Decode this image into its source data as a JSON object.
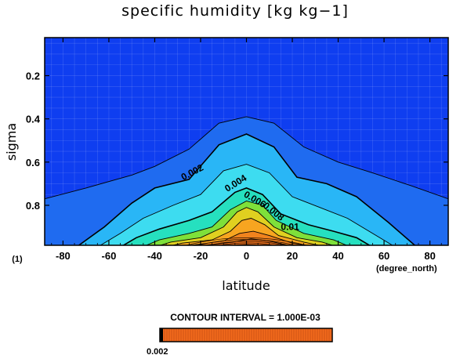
{
  "chart_data": {
    "type": "contour",
    "title": "specific humidity [kg kg−1]",
    "xlabel": "latitude",
    "ylabel": "sigma",
    "x_units": "(degree_north)",
    "y_note": "(1)",
    "xlim": [
      -88,
      88
    ],
    "ylim": [
      1.0,
      0.02
    ],
    "x_ticks": [
      -80,
      -60,
      -40,
      -20,
      0,
      20,
      40,
      60,
      80
    ],
    "y_ticks": [
      0.2,
      0.4,
      0.6,
      0.8
    ],
    "contour_interval_text": "CONTOUR INTERVAL = 1.000E-03",
    "contour_labels": [
      "0.002",
      "0.004",
      "0.006",
      "0.008",
      "0.01"
    ],
    "colorbar_label": "0.002",
    "levels": [
      {
        "value": 0.001,
        "color": "#1f6bf0",
        "profile": [
          [
            -88,
            0.77
          ],
          [
            -70,
            0.72
          ],
          [
            -50,
            0.66
          ],
          [
            -40,
            0.62
          ],
          [
            -25,
            0.54
          ],
          [
            -12,
            0.42
          ],
          [
            0,
            0.39
          ],
          [
            12,
            0.42
          ],
          [
            25,
            0.53
          ],
          [
            40,
            0.6
          ],
          [
            55,
            0.65
          ],
          [
            72,
            0.71
          ],
          [
            88,
            0.77
          ]
        ]
      },
      {
        "value": 0.002,
        "color": "#29b6f6",
        "profile": [
          [
            -75,
            1.0
          ],
          [
            -62,
            0.9
          ],
          [
            -50,
            0.79
          ],
          [
            -40,
            0.72
          ],
          [
            -25,
            0.68
          ],
          [
            -12,
            0.52
          ],
          [
            0,
            0.47
          ],
          [
            12,
            0.53
          ],
          [
            22,
            0.67
          ],
          [
            35,
            0.7
          ],
          [
            48,
            0.76
          ],
          [
            62,
            0.88
          ],
          [
            75,
            1.0
          ]
        ]
      },
      {
        "value": 0.003,
        "color": "#3ddcf0",
        "profile": [
          [
            -66,
            1.0
          ],
          [
            -55,
            0.93
          ],
          [
            -45,
            0.86
          ],
          [
            -32,
            0.8
          ],
          [
            -20,
            0.75
          ],
          [
            -10,
            0.64
          ],
          [
            0,
            0.61
          ],
          [
            10,
            0.65
          ],
          [
            20,
            0.76
          ],
          [
            32,
            0.81
          ],
          [
            44,
            0.86
          ],
          [
            55,
            0.93
          ],
          [
            66,
            1.0
          ]
        ]
      },
      {
        "value": 0.004,
        "color": "#26e0bf",
        "profile": [
          [
            -56,
            1.0
          ],
          [
            -48,
            0.95
          ],
          [
            -38,
            0.91
          ],
          [
            -25,
            0.87
          ],
          [
            -15,
            0.83
          ],
          [
            -5,
            0.74
          ],
          [
            0,
            0.72
          ],
          [
            7,
            0.75
          ],
          [
            15,
            0.84
          ],
          [
            27,
            0.89
          ],
          [
            38,
            0.92
          ],
          [
            48,
            0.95
          ],
          [
            56,
            1.0
          ]
        ]
      },
      {
        "value": 0.005,
        "color": "#7ee03a",
        "profile": [
          [
            -47,
            1.0
          ],
          [
            -38,
            0.96
          ],
          [
            -25,
            0.93
          ],
          [
            -15,
            0.9
          ],
          [
            -7,
            0.82
          ],
          [
            0,
            0.78
          ],
          [
            7,
            0.8
          ],
          [
            13,
            0.87
          ],
          [
            25,
            0.93
          ],
          [
            38,
            0.96
          ],
          [
            47,
            1.0
          ]
        ]
      },
      {
        "value": 0.006,
        "color": "#e0d020",
        "profile": [
          [
            -42,
            1.0
          ],
          [
            -33,
            0.97
          ],
          [
            -20,
            0.95
          ],
          [
            -10,
            0.9
          ],
          [
            -4,
            0.83
          ],
          [
            0,
            0.81
          ],
          [
            5,
            0.83
          ],
          [
            12,
            0.9
          ],
          [
            22,
            0.95
          ],
          [
            33,
            0.97
          ],
          [
            42,
            1.0
          ]
        ]
      },
      {
        "value": 0.007,
        "color": "#f7a520",
        "profile": [
          [
            -38,
            1.0
          ],
          [
            -28,
            0.975
          ],
          [
            -15,
            0.96
          ],
          [
            -7,
            0.92
          ],
          [
            -2,
            0.87
          ],
          [
            2,
            0.86
          ],
          [
            8,
            0.89
          ],
          [
            14,
            0.94
          ],
          [
            25,
            0.97
          ],
          [
            38,
            1.0
          ]
        ]
      },
      {
        "value": 0.008,
        "color": "#f0831e",
        "profile": [
          [
            -34,
            1.0
          ],
          [
            -22,
            0.982
          ],
          [
            -10,
            0.965
          ],
          [
            -3,
            0.93
          ],
          [
            3,
            0.92
          ],
          [
            10,
            0.94
          ],
          [
            20,
            0.975
          ],
          [
            34,
            1.0
          ]
        ]
      },
      {
        "value": 0.009,
        "color": "#e06a1a",
        "profile": [
          [
            -30,
            1.0
          ],
          [
            -18,
            0.985
          ],
          [
            -6,
            0.97
          ],
          [
            2,
            0.955
          ],
          [
            10,
            0.965
          ],
          [
            18,
            0.985
          ],
          [
            30,
            1.0
          ]
        ]
      },
      {
        "value": 0.01,
        "color": "#c2541a",
        "profile": [
          [
            -24,
            1.0
          ],
          [
            -10,
            0.988
          ],
          [
            0,
            0.982
          ],
          [
            10,
            0.988
          ],
          [
            24,
            1.0
          ]
        ]
      }
    ]
  }
}
